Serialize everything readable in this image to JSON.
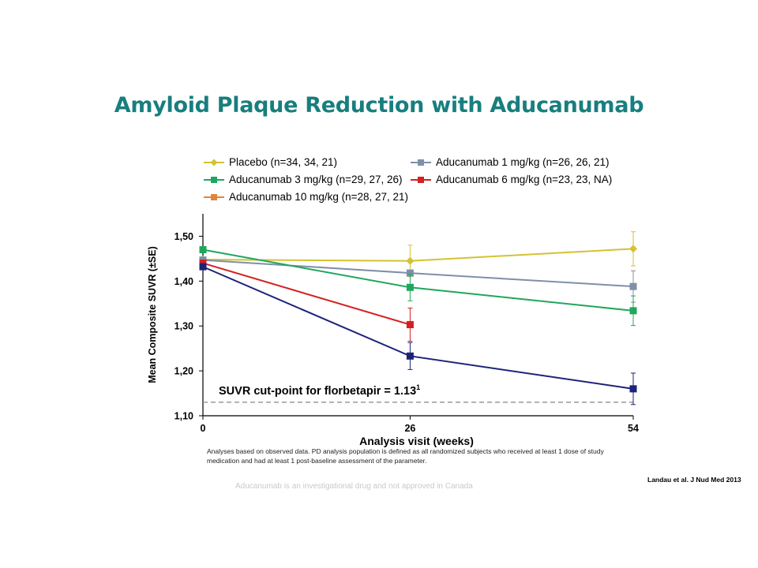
{
  "slide": {
    "title": "Amyloid Plaque Reduction with Aducanumab",
    "footnote": "Analyses based on observed data. PD analysis population is defined as all randomized subjects who received at least 1 dose of study medication and had at least 1 post-baseline assessment of the parameter.",
    "disclaimer": "Aducanumab is an investigational drug and not approved in Canada",
    "citation": "Landau et al. J Nud Med 2013"
  },
  "legend": {
    "placebo": "Placebo (n=34, 34, 21)",
    "dose1": "Aducanumab 1 mg/kg (n=26, 26, 21)",
    "dose3": "Aducanumab 3 mg/kg (n=29, 27, 26)",
    "dose6": "Aducanumab 6 mg/kg (n=23, 23, NA)",
    "dose10": "Aducanumab 10 mg/kg (n=28, 27, 21)"
  },
  "colors": {
    "title": "#187e7e",
    "placebo": "#d4c232",
    "dose1": "#7f8fa9",
    "dose3": "#1fa75d",
    "dose6": "#d42020",
    "dose10": "#e0843c",
    "dose10_line": "#1d2378"
  },
  "chart_data": {
    "type": "line",
    "xlabel": "Analysis visit (weeks)",
    "ylabel": "Mean Composite SUVR (±SE)",
    "x": [
      0,
      26,
      54
    ],
    "x_ticks": [
      "0",
      "26",
      "54"
    ],
    "y_ticks": [
      "1,10",
      "1,20",
      "1,30",
      "1,40",
      "1,50"
    ],
    "y_tick_values": [
      1.1,
      1.2,
      1.3,
      1.4,
      1.5
    ],
    "xlim": [
      0,
      54
    ],
    "ylim": [
      1.1,
      1.55
    ],
    "reference_line": {
      "y": 1.13,
      "label": "SUVR cut-point for florbetapir = 1.13",
      "superscript": "1"
    },
    "series": [
      {
        "name": "Placebo (n=34, 34, 21)",
        "color_key": "placebo",
        "marker": "diamond",
        "x": [
          0,
          26,
          54
        ],
        "y": [
          1.448,
          1.445,
          1.472
        ],
        "err": [
          null,
          0.035,
          0.038
        ]
      },
      {
        "name": "Aducanumab 1 mg/kg (n=26, 26, 21)",
        "color_key": "dose1",
        "marker": "square",
        "x": [
          0,
          26,
          54
        ],
        "y": [
          1.447,
          1.418,
          1.388
        ],
        "err": [
          null,
          0.0,
          0.035
        ]
      },
      {
        "name": "Aducanumab 3 mg/kg (n=29, 27, 26)",
        "color_key": "dose3",
        "marker": "square",
        "x": [
          0,
          26,
          54
        ],
        "y": [
          1.47,
          1.386,
          1.334
        ],
        "err": [
          null,
          0.03,
          0.033
        ]
      },
      {
        "name": "Aducanumab 6 mg/kg (n=23, 23, NA)",
        "color_key": "dose6",
        "marker": "square",
        "x": [
          0,
          26
        ],
        "y": [
          1.44,
          1.303
        ],
        "err": [
          null,
          0.037
        ]
      },
      {
        "name": "Aducanumab 10 mg/kg (n=28, 27, 21)",
        "color_key": "dose10_line",
        "marker": "square",
        "x": [
          0,
          26,
          54
        ],
        "y": [
          1.432,
          1.233,
          1.16
        ],
        "err": [
          null,
          0.03,
          0.035
        ]
      }
    ]
  }
}
